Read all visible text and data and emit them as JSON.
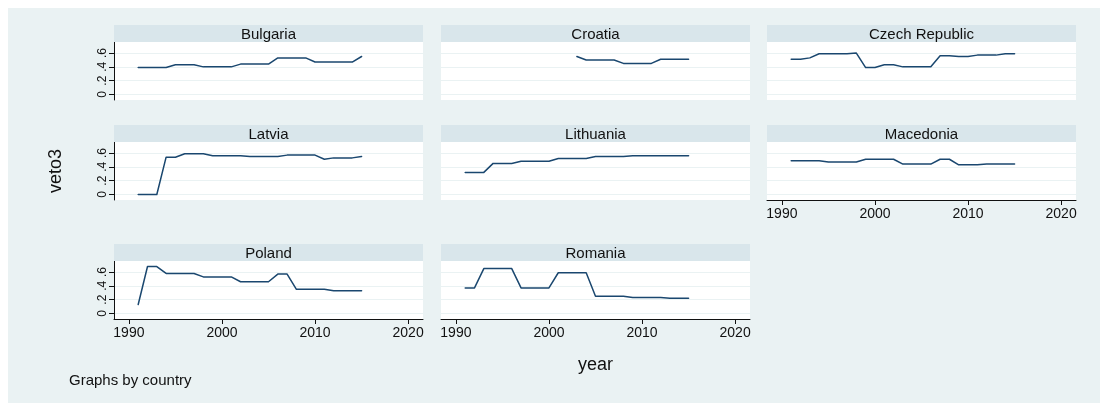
{
  "chart_data": [
    {
      "type": "line",
      "title": "Bulgaria",
      "color": "#1a476f",
      "x": [
        1991,
        1992,
        1993,
        1994,
        1995,
        1996,
        1997,
        1998,
        1999,
        2000,
        2001,
        2002,
        2003,
        2004,
        2005,
        2006,
        2007,
        2008,
        2009,
        2010,
        2011,
        2012,
        2013,
        2014,
        2015
      ],
      "values": [
        0.39,
        0.39,
        0.39,
        0.39,
        0.43,
        0.43,
        0.43,
        0.4,
        0.4,
        0.4,
        0.4,
        0.44,
        0.44,
        0.44,
        0.44,
        0.53,
        0.53,
        0.53,
        0.53,
        0.47,
        0.47,
        0.47,
        0.47,
        0.47,
        0.55
      ],
      "xlim": [
        1988.4,
        2021.6
      ],
      "ylim": [
        -0.08,
        0.76
      ],
      "yticks": [
        {
          "value": 0,
          "label": "0"
        },
        {
          "value": 0.2,
          "label": ".2"
        },
        {
          "value": 0.4,
          "label": ".4"
        },
        {
          "value": 0.6,
          "label": ".6"
        }
      ],
      "tick_labels": "y",
      "grid": "y"
    },
    {
      "type": "line",
      "title": "Croatia",
      "color": "#1a476f",
      "x": [
        2003,
        2004,
        2005,
        2006,
        2007,
        2008,
        2009,
        2010,
        2011,
        2012,
        2013,
        2014,
        2015
      ],
      "values": [
        0.55,
        0.5,
        0.5,
        0.5,
        0.5,
        0.45,
        0.45,
        0.45,
        0.45,
        0.51,
        0.51,
        0.51,
        0.51
      ],
      "xlim": [
        1988.4,
        2021.6
      ],
      "ylim": [
        -0.08,
        0.76
      ],
      "yticks": [
        {
          "value": 0,
          "label": null
        },
        {
          "value": 0.2,
          "label": null
        },
        {
          "value": 0.4,
          "label": null
        },
        {
          "value": 0.6,
          "label": null
        }
      ],
      "tick_labels": false,
      "grid": "y"
    },
    {
      "type": "line",
      "title": "Czech Republic",
      "color": "#1a476f",
      "x": [
        1991,
        1992,
        1993,
        1994,
        1995,
        1996,
        1997,
        1998,
        1999,
        2000,
        2001,
        2002,
        2003,
        2004,
        2005,
        2006,
        2007,
        2008,
        2009,
        2010,
        2011,
        2012,
        2013,
        2014,
        2015
      ],
      "values": [
        0.51,
        0.51,
        0.53,
        0.59,
        0.59,
        0.59,
        0.59,
        0.6,
        0.39,
        0.39,
        0.43,
        0.43,
        0.4,
        0.4,
        0.4,
        0.4,
        0.56,
        0.56,
        0.55,
        0.55,
        0.57,
        0.57,
        0.57,
        0.59,
        0.59
      ],
      "xlim": [
        1988.4,
        2021.6
      ],
      "ylim": [
        -0.08,
        0.76
      ],
      "yticks": [
        {
          "value": 0,
          "label": null
        },
        {
          "value": 0.2,
          "label": null
        },
        {
          "value": 0.4,
          "label": null
        },
        {
          "value": 0.6,
          "label": null
        }
      ],
      "tick_labels": false,
      "grid": "y"
    },
    {
      "type": "line",
      "title": "Latvia",
      "ylabel": "veto3",
      "color": "#1a476f",
      "x": [
        1991,
        1992,
        1993,
        1994,
        1995,
        1996,
        1997,
        1998,
        1999,
        2000,
        2001,
        2002,
        2003,
        2004,
        2005,
        2006,
        2007,
        2008,
        2009,
        2010,
        2011,
        2012,
        2013,
        2014,
        2015
      ],
      "values": [
        0,
        0,
        0,
        0.54,
        0.54,
        0.59,
        0.59,
        0.59,
        0.56,
        0.56,
        0.56,
        0.56,
        0.55,
        0.55,
        0.55,
        0.55,
        0.57,
        0.57,
        0.57,
        0.57,
        0.51,
        0.53,
        0.53,
        0.53,
        0.55
      ],
      "xlim": [
        1988.4,
        2021.6
      ],
      "ylim": [
        -0.08,
        0.76
      ],
      "yticks": [
        {
          "value": 0,
          "label": "0"
        },
        {
          "value": 0.2,
          "label": ".2"
        },
        {
          "value": 0.4,
          "label": ".4"
        },
        {
          "value": 0.6,
          "label": ".6"
        }
      ],
      "tick_labels": "y",
      "grid": "y"
    },
    {
      "type": "line",
      "title": "Lithuania",
      "color": "#1a476f",
      "x": [
        1991,
        1992,
        1993,
        1994,
        1995,
        1996,
        1997,
        1998,
        1999,
        2000,
        2001,
        2002,
        2003,
        2004,
        2005,
        2006,
        2007,
        2008,
        2009,
        2010,
        2011,
        2012,
        2013,
        2014,
        2015
      ],
      "values": [
        0.32,
        0.32,
        0.32,
        0.45,
        0.45,
        0.45,
        0.48,
        0.48,
        0.48,
        0.48,
        0.52,
        0.52,
        0.52,
        0.52,
        0.55,
        0.55,
        0.55,
        0.55,
        0.56,
        0.56,
        0.56,
        0.56,
        0.56,
        0.56,
        0.56
      ],
      "xlim": [
        1988.4,
        2021.6
      ],
      "ylim": [
        -0.08,
        0.76
      ],
      "yticks": [
        {
          "value": 0,
          "label": null
        },
        {
          "value": 0.2,
          "label": null
        },
        {
          "value": 0.4,
          "label": null
        },
        {
          "value": 0.6,
          "label": null
        }
      ],
      "tick_labels": false,
      "grid": "y"
    },
    {
      "type": "line",
      "title": "Macedonia",
      "color": "#1a476f",
      "x": [
        1991,
        1992,
        1993,
        1994,
        1995,
        1996,
        1997,
        1998,
        1999,
        2000,
        2001,
        2002,
        2003,
        2004,
        2005,
        2006,
        2007,
        2008,
        2009,
        2010,
        2011,
        2012,
        2013,
        2014,
        2015
      ],
      "values": [
        0.49,
        0.49,
        0.49,
        0.49,
        0.47,
        0.47,
        0.47,
        0.47,
        0.51,
        0.51,
        0.51,
        0.51,
        0.44,
        0.44,
        0.44,
        0.44,
        0.51,
        0.51,
        0.43,
        0.43,
        0.43,
        0.44,
        0.44,
        0.44,
        0.44
      ],
      "xlim": [
        1988.4,
        2021.6
      ],
      "ylim": [
        -0.08,
        0.76
      ],
      "xticks": [
        1990,
        2000,
        2010,
        2020
      ],
      "yticks": [
        {
          "value": 0,
          "label": null
        },
        {
          "value": 0.2,
          "label": null
        },
        {
          "value": 0.4,
          "label": null
        },
        {
          "value": 0.6,
          "label": null
        }
      ],
      "tick_labels": "x",
      "grid": "y"
    },
    {
      "type": "line",
      "title": "Poland",
      "annotations": [
        "Graphs by country"
      ],
      "color": "#1a476f",
      "x": [
        1991,
        1992,
        1993,
        1994,
        1995,
        1996,
        1997,
        1998,
        1999,
        2000,
        2001,
        2002,
        2003,
        2004,
        2005,
        2006,
        2007,
        2008,
        2009,
        2010,
        2011,
        2012,
        2013,
        2014,
        2015
      ],
      "values": [
        0.13,
        0.68,
        0.68,
        0.58,
        0.58,
        0.58,
        0.58,
        0.53,
        0.53,
        0.53,
        0.53,
        0.46,
        0.46,
        0.46,
        0.46,
        0.57,
        0.57,
        0.35,
        0.35,
        0.35,
        0.35,
        0.33,
        0.33,
        0.33,
        0.33
      ],
      "xlim": [
        1988.4,
        2021.6
      ],
      "ylim": [
        -0.08,
        0.76
      ],
      "xticks": [
        1990,
        2000,
        2010,
        2020
      ],
      "yticks": [
        {
          "value": 0,
          "label": "0"
        },
        {
          "value": 0.2,
          "label": ".2"
        },
        {
          "value": 0.4,
          "label": ".4"
        },
        {
          "value": 0.6,
          "label": ".6"
        }
      ],
      "grid": "y"
    },
    {
      "type": "line",
      "title": "Romania",
      "xlabel": "year",
      "color": "#1a476f",
      "x": [
        1991,
        1992,
        1993,
        1994,
        1995,
        1996,
        1997,
        1998,
        1999,
        2000,
        2001,
        2002,
        2003,
        2004,
        2005,
        2006,
        2007,
        2008,
        2009,
        2010,
        2011,
        2012,
        2013,
        2014,
        2015
      ],
      "values": [
        0.37,
        0.37,
        0.65,
        0.65,
        0.65,
        0.65,
        0.37,
        0.37,
        0.37,
        0.37,
        0.59,
        0.59,
        0.59,
        0.59,
        0.25,
        0.25,
        0.25,
        0.25,
        0.23,
        0.23,
        0.23,
        0.23,
        0.22,
        0.22,
        0.22
      ],
      "xlim": [
        1988.4,
        2021.6
      ],
      "ylim": [
        -0.08,
        0.76
      ],
      "xticks": [
        1990,
        2000,
        2010,
        2020
      ],
      "yticks": [
        {
          "value": 0,
          "label": null
        },
        {
          "value": 0.2,
          "label": null
        },
        {
          "value": 0.4,
          "label": null
        },
        {
          "value": 0.6,
          "label": null
        }
      ],
      "tick_labels": "x",
      "grid": "y"
    }
  ]
}
